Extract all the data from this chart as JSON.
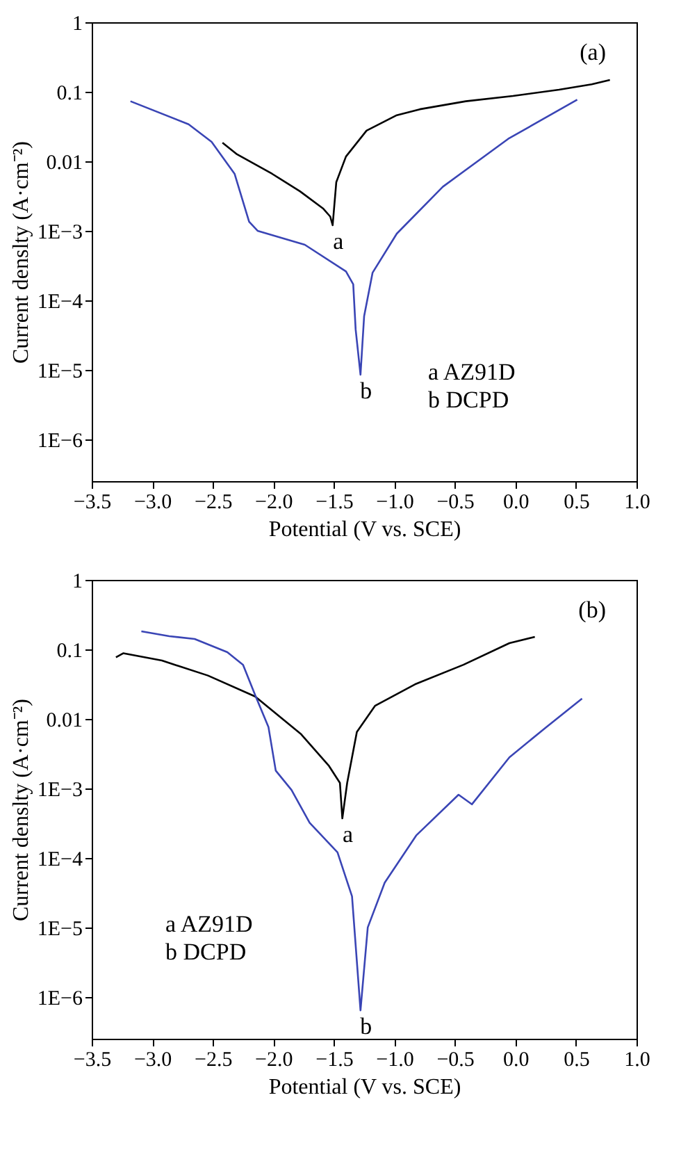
{
  "chart_data": [
    {
      "type": "line",
      "xlabel": "Potential (V vs. SCE)",
      "ylabel": "Current denslty (A·cm⁻²)",
      "log": "y",
      "grid": false,
      "line_style": "solid",
      "marker": "none",
      "xlim": [
        -3.5,
        1.0
      ],
      "xticks": [
        {
          "value": -3.5,
          "label": "−3.5"
        },
        {
          "value": -3.0,
          "label": "−3.0"
        },
        {
          "value": -2.5,
          "label": "−2.5"
        },
        {
          "value": -2.0,
          "label": "−2.0"
        },
        {
          "value": -1.5,
          "label": "−1.5"
        },
        {
          "value": -1.0,
          "label": "−1.0"
        },
        {
          "value": -0.5,
          "label": "−0.5"
        },
        {
          "value": 0.0,
          "label": "0.0"
        },
        {
          "value": 0.5,
          "label": "0.5"
        },
        {
          "value": 1.0,
          "label": "1.0"
        }
      ],
      "ylim": [
        2.5e-07,
        1
      ],
      "yticks": [
        1,
        0.1,
        0.01,
        {
          "value": 0.001,
          "label": "1E−3"
        },
        {
          "value": 0.0001,
          "label": "1E−4"
        },
        {
          "value": 1e-05,
          "label": "1E−5"
        },
        {
          "value": 1e-06,
          "label": "1E−6"
        }
      ],
      "series": [
        {
          "name": "a",
          "color": "#000000",
          "x": [
            -2.42,
            -2.3,
            -2.01,
            -1.78,
            -1.59,
            -1.53,
            -1.51,
            -1.48,
            -1.4,
            -1.23,
            -0.98,
            -0.79,
            -0.41,
            -0.02,
            0.36,
            0.63,
            0.78
          ],
          "values": [
            0.0185,
            0.0126,
            0.0066,
            0.0037,
            0.0021,
            0.0016,
            0.0012,
            0.005,
            0.0117,
            0.0276,
            0.046,
            0.056,
            0.073,
            0.087,
            0.107,
            0.128,
            0.148
          ]
        },
        {
          "name": "b",
          "color": "#3a45b5",
          "x": [
            -3.18,
            -2.7,
            -2.51,
            -2.32,
            -2.2,
            -2.13,
            -1.74,
            -1.4,
            -1.34,
            -1.32,
            -1.28,
            -1.25,
            -1.18,
            -0.98,
            -0.6,
            -0.06,
            0.51
          ],
          "values": [
            0.073,
            0.034,
            0.019,
            0.0066,
            0.00135,
            0.001,
            0.00063,
            0.00026,
            0.00017,
            3.8e-05,
            8.5e-06,
            5.9e-05,
            0.00025,
            0.00091,
            0.0043,
            0.021,
            0.077
          ]
        }
      ],
      "annotations": [
        "(a)",
        "a  AZ91D",
        "b DCPD"
      ]
    },
    {
      "type": "line",
      "xlabel": "Potential (V vs. SCE)",
      "ylabel": "Current denslty (A·cm⁻²)",
      "log": "y",
      "grid": false,
      "line_style": "solid",
      "marker": "none",
      "xlim": [
        -3.5,
        1.0
      ],
      "xticks": [
        {
          "value": -3.5,
          "label": "−3.5"
        },
        {
          "value": -3.0,
          "label": "−3.0"
        },
        {
          "value": -2.5,
          "label": "−2.5"
        },
        {
          "value": -2.0,
          "label": "−2.0"
        },
        {
          "value": -1.5,
          "label": "−1.5"
        },
        {
          "value": -1.0,
          "label": "−1.0"
        },
        {
          "value": -0.5,
          "label": "−0.5"
        },
        {
          "value": 0.0,
          "label": "0.0"
        },
        {
          "value": 0.5,
          "label": "0.5"
        },
        {
          "value": 1.0,
          "label": "1.0"
        }
      ],
      "ylim": [
        2.5e-07,
        1
      ],
      "yticks": [
        1,
        0.1,
        0.01,
        {
          "value": 0.001,
          "label": "1E−3"
        },
        {
          "value": 0.0001,
          "label": "1E−4"
        },
        {
          "value": 1e-05,
          "label": "1E−5"
        },
        {
          "value": 1e-06,
          "label": "1E−6"
        }
      ],
      "series": [
        {
          "name": "a",
          "color": "#000000",
          "x": [
            -3.3,
            -3.24,
            -2.92,
            -2.54,
            -2.15,
            -1.77,
            -1.54,
            -1.45,
            -1.43,
            -1.39,
            -1.31,
            -1.16,
            -0.82,
            -0.43,
            -0.05,
            0.16
          ],
          "values": [
            0.077,
            0.088,
            0.069,
            0.042,
            0.021,
            0.006,
            0.0021,
            0.0012,
            0.00037,
            0.0012,
            0.0065,
            0.0154,
            0.032,
            0.06,
            0.123,
            0.151
          ]
        },
        {
          "name": "b",
          "color": "#3a45b5",
          "x": [
            -3.09,
            -2.86,
            -2.65,
            -2.38,
            -2.25,
            -2.15,
            -2.04,
            -1.98,
            -1.85,
            -1.7,
            -1.47,
            -1.35,
            -1.28,
            -1.22,
            -1.08,
            -0.82,
            -0.47,
            -0.36,
            -0.05,
            0.25,
            0.55
          ],
          "values": [
            0.182,
            0.155,
            0.141,
            0.091,
            0.06,
            0.022,
            0.0076,
            0.0018,
            0.00095,
            0.00032,
            0.00012,
            2.8e-05,
            6.4e-07,
            1e-05,
            4.4e-05,
            0.00021,
            0.00081,
            0.00059,
            0.0028,
            0.0075,
            0.0196
          ]
        }
      ],
      "annotations": [
        "(b)",
        "a AZ91D",
        "b DCPD"
      ]
    }
  ]
}
